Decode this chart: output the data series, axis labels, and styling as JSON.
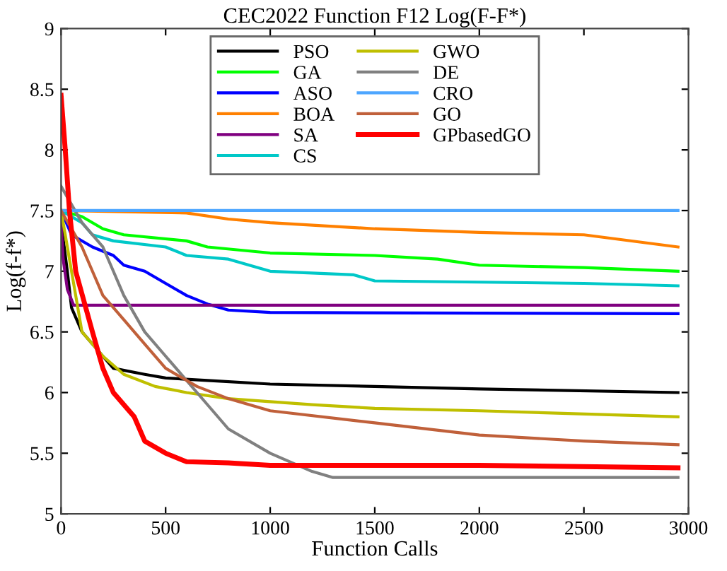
{
  "chart_data": {
    "type": "line",
    "title": "CEC2022 Function F12 Log(F-F*)",
    "xlabel": "Function Calls",
    "ylabel": "Log(f-f*)",
    "xlim": [
      0,
      3000
    ],
    "xticks": [
      0,
      500,
      1000,
      1500,
      2000,
      2500,
      3000
    ],
    "ylim": [
      5,
      9
    ],
    "yticks": [
      5,
      5.5,
      6,
      6.5,
      7,
      7.5,
      8,
      8.5,
      9
    ],
    "grid": false,
    "legend": "top",
    "marker": "none",
    "line_style": "solid",
    "series": [
      {
        "name": "PSO",
        "color": "#000000",
        "x": [
          0,
          30,
          50,
          100,
          200,
          250,
          400,
          500,
          700,
          1000,
          1500,
          2000,
          2950
        ],
        "values": [
          7.4,
          7.0,
          6.7,
          6.5,
          6.3,
          6.2,
          6.15,
          6.12,
          6.1,
          6.07,
          6.05,
          6.03,
          6.0
        ]
      },
      {
        "name": "GA",
        "color": "#00ff00",
        "x": [
          0,
          100,
          200,
          300,
          600,
          700,
          1000,
          1500,
          1800,
          2000,
          2500,
          2950
        ],
        "values": [
          7.5,
          7.45,
          7.35,
          7.3,
          7.25,
          7.2,
          7.15,
          7.13,
          7.1,
          7.05,
          7.03,
          7.0
        ]
      },
      {
        "name": "ASO",
        "color": "#0000ff",
        "x": [
          0,
          50,
          150,
          250,
          300,
          400,
          500,
          600,
          700,
          800,
          1000,
          2950
        ],
        "values": [
          7.5,
          7.3,
          7.2,
          7.13,
          7.05,
          7.0,
          6.9,
          6.8,
          6.73,
          6.68,
          6.66,
          6.65
        ]
      },
      {
        "name": "BOA",
        "color": "#ff8000",
        "x": [
          0,
          600,
          800,
          1000,
          1500,
          2000,
          2500,
          2950
        ],
        "values": [
          7.5,
          7.48,
          7.43,
          7.4,
          7.35,
          7.32,
          7.3,
          7.2
        ]
      },
      {
        "name": "SA",
        "color": "#800080",
        "x": [
          0,
          10,
          30,
          60,
          2950
        ],
        "values": [
          7.4,
          7.1,
          6.85,
          6.72,
          6.72
        ]
      },
      {
        "name": "CS",
        "color": "#00c8c8",
        "x": [
          0,
          100,
          150,
          250,
          500,
          600,
          800,
          1000,
          1400,
          1500,
          2500,
          2950
        ],
        "values": [
          7.5,
          7.4,
          7.3,
          7.25,
          7.2,
          7.13,
          7.1,
          7.0,
          6.97,
          6.92,
          6.9,
          6.88
        ]
      },
      {
        "name": "GWO",
        "color": "#bfbf00",
        "x": [
          0,
          100,
          200,
          300,
          450,
          600,
          800,
          1200,
          1500,
          2000,
          2950
        ],
        "values": [
          7.5,
          6.5,
          6.3,
          6.15,
          6.05,
          6.0,
          5.95,
          5.9,
          5.87,
          5.85,
          5.8
        ]
      },
      {
        "name": "DE",
        "color": "#808080",
        "x": [
          0,
          100,
          200,
          250,
          300,
          400,
          500,
          650,
          800,
          1000,
          1200,
          1300,
          2950
        ],
        "values": [
          7.7,
          7.4,
          7.2,
          7.0,
          6.8,
          6.5,
          6.3,
          6.0,
          5.7,
          5.5,
          5.35,
          5.3,
          5.3
        ]
      },
      {
        "name": "CRO",
        "color": "#4da6ff",
        "x": [
          0,
          2950
        ],
        "values": [
          7.5,
          7.5
        ]
      },
      {
        "name": "GO",
        "color": "#c0603a",
        "x": [
          0,
          100,
          150,
          200,
          300,
          400,
          500,
          650,
          800,
          1000,
          1500,
          2000,
          2500,
          2950
        ],
        "values": [
          7.5,
          7.2,
          7.0,
          6.8,
          6.6,
          6.4,
          6.2,
          6.05,
          5.95,
          5.85,
          5.75,
          5.65,
          5.6,
          5.57
        ]
      },
      {
        "name": "GPbasedGO",
        "color": "#ff0000",
        "x": [
          0,
          20,
          40,
          70,
          150,
          200,
          250,
          350,
          400,
          500,
          600,
          800,
          1000,
          2000,
          2950
        ],
        "values": [
          8.45,
          8.0,
          7.5,
          7.0,
          6.5,
          6.2,
          6.0,
          5.8,
          5.6,
          5.5,
          5.43,
          5.42,
          5.4,
          5.4,
          5.38
        ]
      }
    ]
  }
}
